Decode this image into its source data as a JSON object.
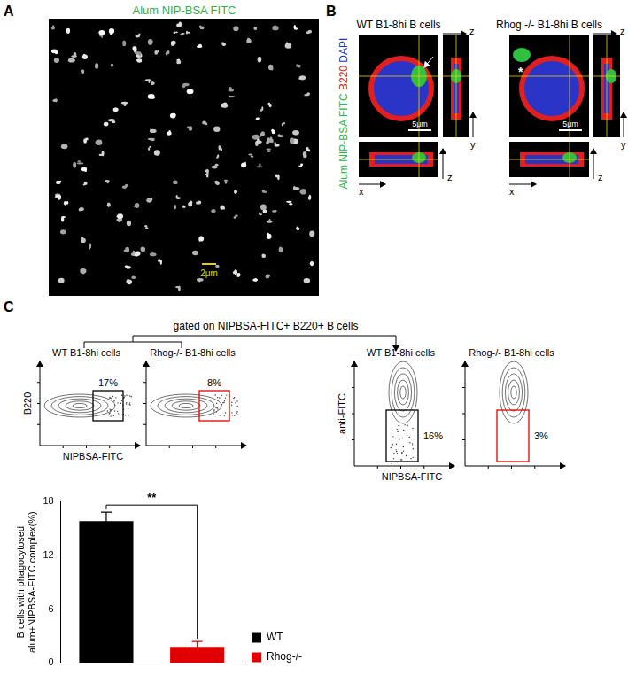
{
  "panels": {
    "A": {
      "label": "A",
      "title": "Alum NIP-BSA FITC",
      "scale_bar": "2μm"
    },
    "B": {
      "label": "B",
      "channels": [
        {
          "text": "Alum NIP-BSA FITC",
          "color": "#2db34a"
        },
        {
          "text": "B220",
          "color": "#e02020"
        },
        {
          "text": "DAPI",
          "color": "#2030d0"
        }
      ],
      "axes": {
        "x": "x",
        "y": "y",
        "z": "z"
      },
      "images": [
        {
          "title": "WT B1-8hi B cells",
          "scale_bar": "5μm",
          "mark": ""
        },
        {
          "title": "Rhog -/- B1-8hi B cells",
          "scale_bar": "5μm",
          "mark": "*"
        }
      ]
    },
    "C": {
      "label": "C",
      "gate_note": "gated on NIPBSA-FITC+ B220+ B cells",
      "plot_groups": [
        {
          "y_label": "B220",
          "x_label": "NIPBSA-FITC",
          "plots": [
            {
              "title": "WT B1-8hi cells",
              "gate": "17%",
              "gate_color": "#000000"
            },
            {
              "title": "Rhog-/- B1-8hi cells",
              "gate": "8%",
              "gate_color": "#e00000"
            }
          ]
        },
        {
          "y_label": "anti-FITC",
          "x_label": "NIPBSA-FITC",
          "plots": [
            {
              "title": "WT B1-8hi cells",
              "gate": "16%",
              "gate_color": "#000000"
            },
            {
              "title": "Rhog-/- B1-8hi cells",
              "gate": "3%",
              "gate_color": "#e00000"
            }
          ]
        }
      ]
    }
  },
  "chart_data": {
    "type": "bar",
    "categories": [
      "WT",
      "Rhog-/-"
    ],
    "values": [
      15.8,
      1.8
    ],
    "errors": [
      1.0,
      0.6
    ],
    "colors": [
      "#000000",
      "#e00000"
    ],
    "y_label": [
      "B cells with phagocytosed",
      "alum+NIPBSA-FITC complex(%)"
    ],
    "ylim": [
      0,
      18
    ],
    "yticks": [
      0,
      6,
      12,
      18
    ],
    "grid": false,
    "legend": "right",
    "tick_labels": "y",
    "annotations": [
      {
        "text": "**",
        "between": [
          "WT",
          "Rhog-/-"
        ]
      }
    ]
  }
}
